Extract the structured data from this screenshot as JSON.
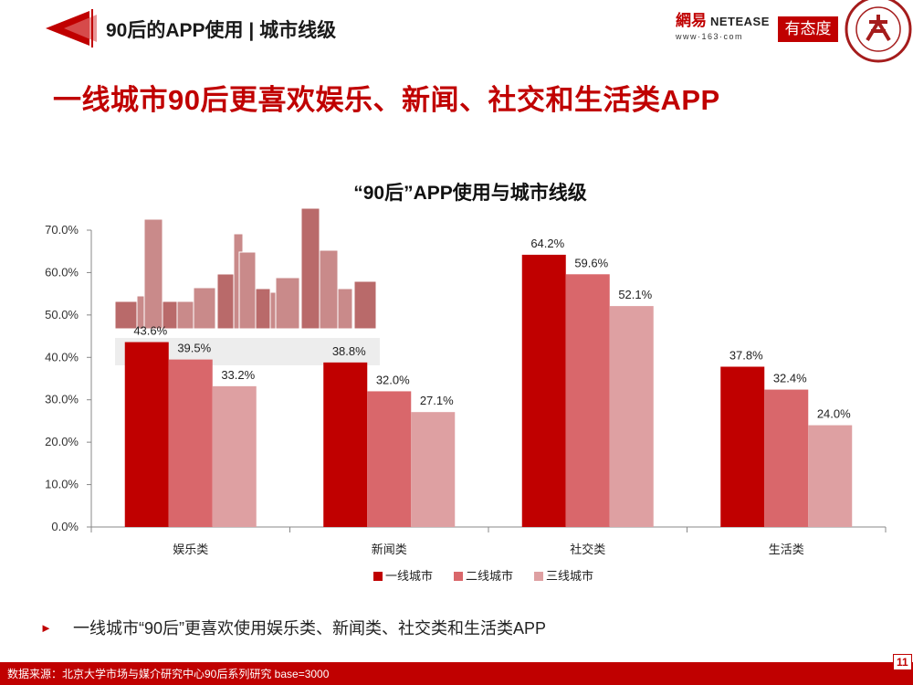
{
  "header": {
    "title": "90后的APP使用 | 城市线级",
    "brand_cn": "網易",
    "brand_en": "NETEASE",
    "brand_url": "www·163·com",
    "brand_youtaidu": "有态度"
  },
  "headline": "一线城市90后更喜欢娱乐、新闻、社交和生活类APP",
  "chart_data": {
    "type": "bar",
    "title": "“90后”APP使用与城市线级",
    "categories": [
      "娱乐类",
      "新闻类",
      "社交类",
      "生活类"
    ],
    "series": [
      {
        "name": "一线城市",
        "values": [
          43.6,
          38.8,
          64.2,
          37.8
        ]
      },
      {
        "name": "二线城市",
        "values": [
          39.5,
          32.0,
          59.6,
          32.4
        ]
      },
      {
        "name": "三线城市",
        "values": [
          33.2,
          27.1,
          52.1,
          24.0
        ]
      }
    ],
    "colors": [
      "#c00000",
      "#d9676b",
      "#dea0a2"
    ],
    "ylim": [
      0,
      70
    ],
    "yticks": [
      0,
      10,
      20,
      30,
      40,
      50,
      60,
      70
    ],
    "ytick_labels": [
      "0.0%",
      "10.0%",
      "20.0%",
      "30.0%",
      "40.0%",
      "50.0%",
      "60.0%",
      "70.0%"
    ],
    "value_format": "percent_1dp",
    "legend_position": "bottom-center",
    "xlabel": "",
    "ylabel": ""
  },
  "bullet": "一线城市“90后”更喜欢使用娱乐类、新闻类、社交类和生活类APP",
  "footer": {
    "source": "数据来源：北京大学市场与媒介研究中心90后系列研究 base=3000",
    "page": "11"
  },
  "colors": {
    "accent": "#c00000"
  }
}
